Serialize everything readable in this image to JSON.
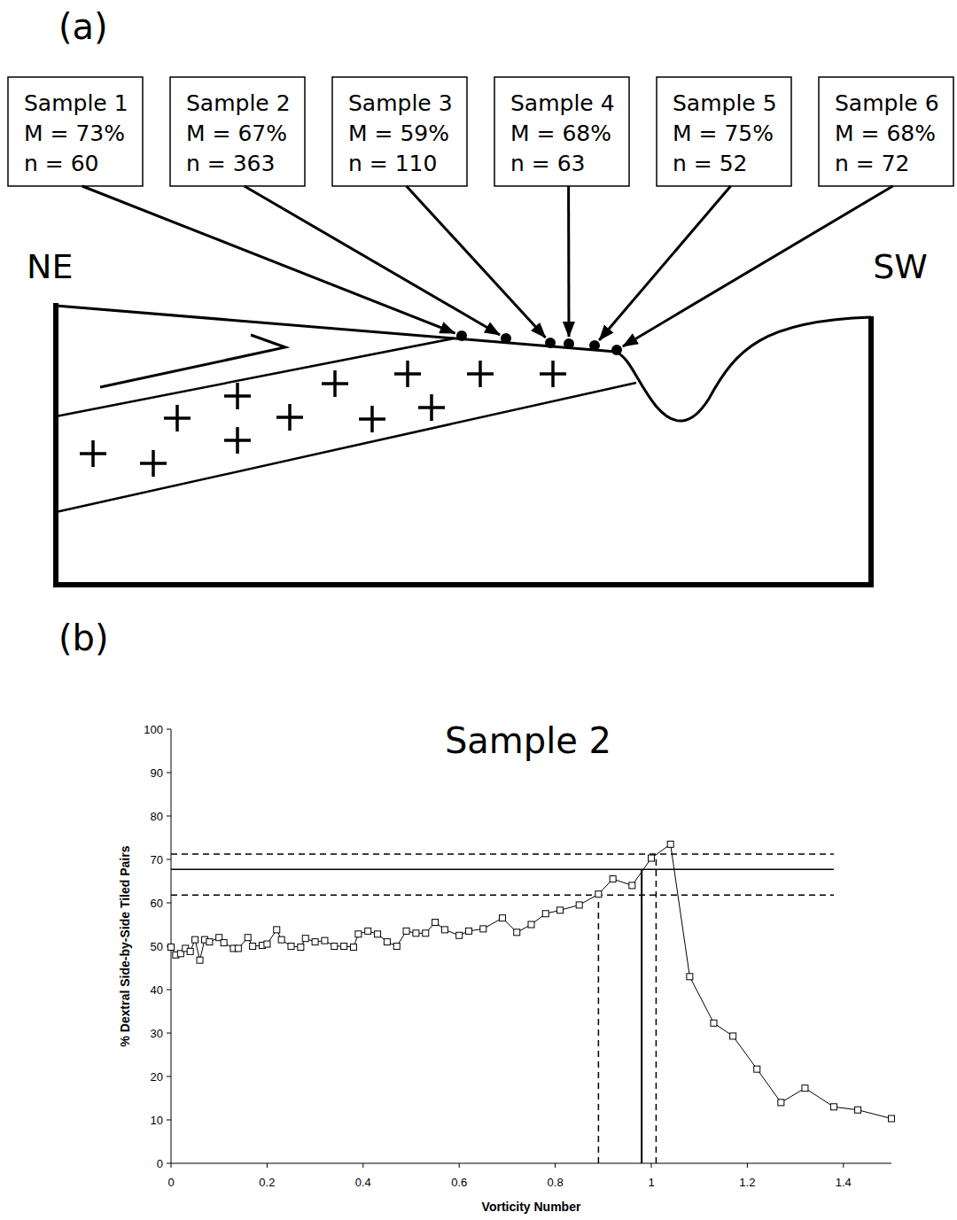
{
  "panel_a": {
    "letter": "(a)",
    "left_label": "NE",
    "right_label": "SW",
    "samples": [
      {
        "lines": [
          "Sample 1",
          "M = 73%",
          "n = 60"
        ]
      },
      {
        "lines": [
          "Sample 2",
          "M = 67%",
          "n = 363"
        ]
      },
      {
        "lines": [
          "Sample 3",
          "M = 59%",
          "n = 110"
        ]
      },
      {
        "lines": [
          "Sample 4",
          "M = 68%",
          "n = 63"
        ]
      },
      {
        "lines": [
          "Sample 5",
          "M = 75%",
          "n = 52"
        ]
      },
      {
        "lines": [
          "Sample 6",
          "M = 68%",
          "n = 72"
        ]
      }
    ]
  },
  "chart_data": {
    "letter": "(b)",
    "type": "line",
    "title": "Sample 2",
    "x_label": "Vorticity Number",
    "y_label": "% Dextral Side-by-Side Tiled Pairs",
    "color": "#000000",
    "marker": "square",
    "grid": false,
    "x": [
      0,
      0.01,
      0.02,
      0.03,
      0.04,
      0.05,
      0.06,
      0.07,
      0.08,
      0.1,
      0.11,
      0.13,
      0.14,
      0.16,
      0.17,
      0.19,
      0.2,
      0.22,
      0.23,
      0.25,
      0.27,
      0.28,
      0.3,
      0.32,
      0.34,
      0.36,
      0.38,
      0.39,
      0.41,
      0.43,
      0.45,
      0.47,
      0.49,
      0.51,
      0.53,
      0.55,
      0.57,
      0.6,
      0.62,
      0.65,
      0.69,
      0.72,
      0.75,
      0.78,
      0.81,
      0.85,
      0.89,
      0.92,
      0.96,
      1.0,
      1.04,
      1.08,
      1.13,
      1.17,
      1.22,
      1.27,
      1.32,
      1.38,
      1.43,
      1.5
    ],
    "values": [
      49.8,
      48,
      48.3,
      49.5,
      48.8,
      51.5,
      46.8,
      51.5,
      51,
      52,
      50.8,
      49.5,
      49.5,
      52,
      50,
      50.2,
      50.5,
      53.8,
      51.5,
      50,
      49.8,
      51.8,
      51,
      51.3,
      50,
      50,
      49.8,
      52.8,
      53.5,
      52.8,
      51,
      50,
      53.5,
      53,
      53,
      55.5,
      53.8,
      52.5,
      53.5,
      54,
      56.5,
      53.2,
      55,
      57.5,
      58.3,
      59.5,
      62,
      65.5,
      64,
      70.3,
      73.5,
      43,
      32.3,
      29.3,
      21.7,
      14,
      17.3,
      13,
      12.3,
      10.3
    ],
    "xlim": [
      0,
      1.5
    ],
    "xticks": [
      0,
      0.2,
      0.4,
      0.6,
      0.8,
      1,
      1.2,
      1.4
    ],
    "ylim": [
      0,
      100
    ],
    "yticks": [
      0,
      10,
      20,
      30,
      40,
      50,
      60,
      70,
      80,
      90,
      100
    ],
    "hlines": [
      {
        "y": 67.7,
        "x_end": 1.38,
        "line_style": "solid"
      },
      {
        "y": 71.2,
        "x_end": 1.38,
        "line_style": "dashed"
      },
      {
        "y": 61.8,
        "x_end": 1.38,
        "line_style": "dashed"
      }
    ],
    "vlines": [
      {
        "x": 0.98,
        "y_end": 67.7,
        "line_style": "solid"
      },
      {
        "x": 0.89,
        "y_end": 61.8,
        "line_style": "dashed"
      },
      {
        "x": 1.01,
        "y_end": 71.2,
        "line_style": "dashed"
      }
    ]
  }
}
